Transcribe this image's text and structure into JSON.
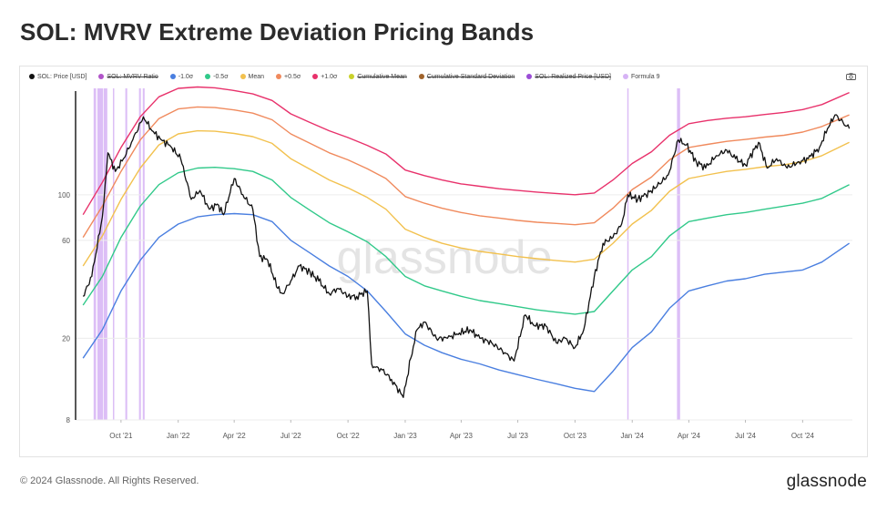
{
  "title": "SOL: MVRV Extreme Deviation Pricing Bands",
  "footer": "© 2024 Glassnode. All Rights Reserved.",
  "brand": "glassnode",
  "watermark": "glassnode",
  "legend": [
    {
      "label": "SOL: Price [USD]",
      "color": "#111111",
      "active": true
    },
    {
      "label": "SOL: MVRV Ratio",
      "color": "#b154c9",
      "active": false
    },
    {
      "label": "-1.0σ",
      "color": "#4a7fe0",
      "active": true
    },
    {
      "label": "-0.5σ",
      "color": "#31c98a",
      "active": true
    },
    {
      "label": "Mean",
      "color": "#f2c14e",
      "active": true
    },
    {
      "label": "+0.5σ",
      "color": "#f08a5d",
      "active": true
    },
    {
      "label": "+1.0σ",
      "color": "#e8316b",
      "active": true
    },
    {
      "label": "Cumulative Mean",
      "color": "#c9d12a",
      "active": false
    },
    {
      "label": "Cumulative Standard Deviation",
      "color": "#a0632b",
      "active": false
    },
    {
      "label": "SOL: Realized Price [USD]",
      "color": "#9b4dd6",
      "active": false
    },
    {
      "label": "Formula 9",
      "color": "#d6b3f5",
      "active": true
    }
  ],
  "chart_data": {
    "type": "line",
    "y_scale": "log",
    "ylim": [
      8,
      330
    ],
    "y_ticks": [
      8,
      20,
      60,
      100
    ],
    "x_ticks": [
      "Oct '21",
      "Jan '22",
      "Apr '22",
      "Jul '22",
      "Oct '22",
      "Jan '23",
      "Apr '23",
      "Jul '23",
      "Oct '23",
      "Jan '24",
      "Apr '24",
      "Jul '24",
      "Oct '24"
    ],
    "x_range": [
      "2021-07-20",
      "2024-12-20"
    ],
    "series": [
      {
        "name": "-1.0σ",
        "color": "#4a7fe0",
        "x": [
          "2021-08-01",
          "2021-09-01",
          "2021-10-01",
          "2021-11-01",
          "2021-12-01",
          "2022-01-01",
          "2022-02-01",
          "2022-03-01",
          "2022-04-01",
          "2022-05-01",
          "2022-06-01",
          "2022-07-01",
          "2022-08-01",
          "2022-09-01",
          "2022-10-01",
          "2022-11-01",
          "2022-12-01",
          "2023-01-01",
          "2023-02-01",
          "2023-03-01",
          "2023-04-01",
          "2023-05-01",
          "2023-06-01",
          "2023-07-01",
          "2023-08-01",
          "2023-09-01",
          "2023-10-01",
          "2023-11-01",
          "2023-12-01",
          "2024-01-01",
          "2024-02-01",
          "2024-03-01",
          "2024-04-01",
          "2024-05-01",
          "2024-06-01",
          "2024-07-01",
          "2024-08-01",
          "2024-09-01",
          "2024-10-01",
          "2024-11-01",
          "2024-12-15"
        ],
        "y": [
          16,
          22,
          34,
          48,
          62,
          72,
          78,
          80,
          81,
          80,
          74,
          60,
          52,
          45,
          40,
          34,
          27,
          21,
          18.5,
          17,
          15.8,
          15,
          14,
          13.3,
          12.6,
          12,
          11.4,
          11,
          13.8,
          18,
          21.5,
          28,
          34,
          36,
          38,
          39,
          41,
          42,
          43,
          47,
          58
        ]
      },
      {
        "name": "-0.5σ",
        "color": "#31c98a",
        "x": [
          "2021-08-01",
          "2021-09-01",
          "2021-10-01",
          "2021-11-01",
          "2021-12-01",
          "2022-01-01",
          "2022-02-01",
          "2022-03-01",
          "2022-04-01",
          "2022-05-01",
          "2022-06-01",
          "2022-07-01",
          "2022-08-01",
          "2022-09-01",
          "2022-10-01",
          "2022-11-01",
          "2022-12-01",
          "2023-01-01",
          "2023-02-01",
          "2023-03-01",
          "2023-04-01",
          "2023-05-01",
          "2023-06-01",
          "2023-07-01",
          "2023-08-01",
          "2023-09-01",
          "2023-10-01",
          "2023-11-01",
          "2023-12-01",
          "2024-01-01",
          "2024-02-01",
          "2024-03-01",
          "2024-04-01",
          "2024-05-01",
          "2024-06-01",
          "2024-07-01",
          "2024-08-01",
          "2024-09-01",
          "2024-10-01",
          "2024-11-01",
          "2024-12-15"
        ],
        "y": [
          29,
          40,
          62,
          88,
          112,
          128,
          135,
          136,
          134,
          130,
          118,
          97,
          84,
          73,
          66,
          59,
          50,
          40,
          36,
          34,
          32,
          30.5,
          29.5,
          28.5,
          27.5,
          26.8,
          26.2,
          27,
          34,
          43,
          50,
          63,
          74,
          77,
          80,
          82,
          85,
          88,
          91,
          96,
          112
        ]
      },
      {
        "name": "Mean",
        "color": "#f2c14e",
        "x": [
          "2021-08-01",
          "2021-09-01",
          "2021-10-01",
          "2021-11-01",
          "2021-12-01",
          "2022-01-01",
          "2022-02-01",
          "2022-03-01",
          "2022-04-01",
          "2022-05-01",
          "2022-06-01",
          "2022-07-01",
          "2022-08-01",
          "2022-09-01",
          "2022-10-01",
          "2022-11-01",
          "2022-12-01",
          "2023-01-01",
          "2023-02-01",
          "2023-03-01",
          "2023-04-01",
          "2023-05-01",
          "2023-06-01",
          "2023-07-01",
          "2023-08-01",
          "2023-09-01",
          "2023-10-01",
          "2023-11-01",
          "2023-12-01",
          "2024-01-01",
          "2024-02-01",
          "2024-03-01",
          "2024-04-01",
          "2024-05-01",
          "2024-06-01",
          "2024-07-01",
          "2024-08-01",
          "2024-09-01",
          "2024-10-01",
          "2024-11-01",
          "2024-12-15"
        ],
        "y": [
          45,
          63,
          95,
          135,
          175,
          198,
          205,
          204,
          199,
          192,
          178,
          150,
          133,
          118,
          108,
          97,
          85,
          68,
          62,
          58,
          55,
          53,
          51.5,
          50,
          48.8,
          47.8,
          47,
          48.5,
          58,
          72,
          84,
          104,
          120,
          125,
          130,
          133,
          137,
          140,
          145,
          155,
          180
        ]
      },
      {
        "name": "+0.5σ",
        "color": "#f08a5d",
        "x": [
          "2021-08-01",
          "2021-09-01",
          "2021-10-01",
          "2021-11-01",
          "2021-12-01",
          "2022-01-01",
          "2022-02-01",
          "2022-03-01",
          "2022-04-01",
          "2022-05-01",
          "2022-06-01",
          "2022-07-01",
          "2022-08-01",
          "2022-09-01",
          "2022-10-01",
          "2022-11-01",
          "2022-12-01",
          "2023-01-01",
          "2023-02-01",
          "2023-03-01",
          "2023-04-01",
          "2023-05-01",
          "2023-06-01",
          "2023-07-01",
          "2023-08-01",
          "2023-09-01",
          "2023-10-01",
          "2023-11-01",
          "2023-12-01",
          "2024-01-01",
          "2024-02-01",
          "2024-03-01",
          "2024-04-01",
          "2024-05-01",
          "2024-06-01",
          "2024-07-01",
          "2024-08-01",
          "2024-09-01",
          "2024-10-01",
          "2024-11-01",
          "2024-12-15"
        ],
        "y": [
          62,
          88,
          130,
          185,
          235,
          262,
          268,
          266,
          259,
          250,
          232,
          198,
          178,
          160,
          148,
          134,
          120,
          98,
          91,
          86,
          82,
          79,
          77,
          75,
          73.5,
          72.5,
          71.5,
          73,
          86,
          106,
          122,
          148,
          170,
          176,
          182,
          186,
          191,
          195,
          202,
          215,
          245
        ]
      },
      {
        "name": "+1.0σ",
        "color": "#e8316b",
        "x": [
          "2021-08-01",
          "2021-09-01",
          "2021-10-01",
          "2021-11-01",
          "2021-12-01",
          "2022-01-01",
          "2022-02-01",
          "2022-03-01",
          "2022-04-01",
          "2022-05-01",
          "2022-06-01",
          "2022-07-01",
          "2022-08-01",
          "2022-09-01",
          "2022-10-01",
          "2022-11-01",
          "2022-12-01",
          "2023-01-01",
          "2023-02-01",
          "2023-03-01",
          "2023-04-01",
          "2023-05-01",
          "2023-06-01",
          "2023-07-01",
          "2023-08-01",
          "2023-09-01",
          "2023-10-01",
          "2023-11-01",
          "2023-12-01",
          "2024-01-01",
          "2024-02-01",
          "2024-03-01",
          "2024-04-01",
          "2024-05-01",
          "2024-06-01",
          "2024-07-01",
          "2024-08-01",
          "2024-09-01",
          "2024-10-01",
          "2024-11-01",
          "2024-12-15"
        ],
        "y": [
          80,
          115,
          170,
          240,
          300,
          330,
          335,
          332,
          322,
          310,
          288,
          248,
          225,
          205,
          190,
          174,
          158,
          132,
          124,
          118,
          113,
          110,
          107,
          105,
          103,
          101.5,
          100,
          102,
          118,
          142,
          162,
          195,
          222,
          230,
          236,
          240,
          246,
          252,
          260,
          275,
          315
        ]
      },
      {
        "name": "SOL: Price [USD]",
        "color": "#111111",
        "x": [
          "2021-08-01",
          "2021-08-15",
          "2021-09-01",
          "2021-09-10",
          "2021-09-22",
          "2021-10-05",
          "2021-10-20",
          "2021-11-06",
          "2021-11-20",
          "2021-12-05",
          "2021-12-20",
          "2022-01-05",
          "2022-01-22",
          "2022-02-05",
          "2022-02-20",
          "2022-03-05",
          "2022-03-15",
          "2022-04-01",
          "2022-04-15",
          "2022-05-01",
          "2022-05-12",
          "2022-05-25",
          "2022-06-10",
          "2022-06-18",
          "2022-07-01",
          "2022-07-15",
          "2022-08-01",
          "2022-08-15",
          "2022-09-01",
          "2022-09-15",
          "2022-10-01",
          "2022-10-15",
          "2022-11-01",
          "2022-11-08",
          "2022-11-12",
          "2022-11-25",
          "2022-12-10",
          "2022-12-29",
          "2023-01-10",
          "2023-01-20",
          "2023-02-01",
          "2023-02-20",
          "2023-03-10",
          "2023-03-25",
          "2023-04-15",
          "2023-05-01",
          "2023-05-20",
          "2023-06-10",
          "2023-06-25",
          "2023-07-13",
          "2023-07-28",
          "2023-08-15",
          "2023-09-01",
          "2023-09-15",
          "2023-10-01",
          "2023-10-15",
          "2023-11-01",
          "2023-11-15",
          "2023-12-01",
          "2023-12-15",
          "2023-12-25",
          "2024-01-10",
          "2024-01-23",
          "2024-02-10",
          "2024-02-28",
          "2024-03-15",
          "2024-03-28",
          "2024-04-13",
          "2024-04-28",
          "2024-05-15",
          "2024-06-01",
          "2024-06-15",
          "2024-07-01",
          "2024-07-22",
          "2024-08-05",
          "2024-08-20",
          "2024-09-06",
          "2024-09-25",
          "2024-10-10",
          "2024-10-28",
          "2024-11-10",
          "2024-11-22",
          "2024-12-05",
          "2024-12-15"
        ],
        "y": [
          32,
          40,
          78,
          160,
          130,
          150,
          185,
          240,
          205,
          185,
          172,
          150,
          95,
          105,
          85,
          90,
          80,
          120,
          100,
          85,
          50,
          48,
          35,
          33,
          38,
          45,
          42,
          38,
          33,
          35,
          32,
          32,
          34,
          15,
          14.5,
          14,
          12.6,
          10.3,
          16,
          22,
          24,
          20,
          20,
          21,
          22,
          20,
          19,
          17,
          15.5,
          26,
          23,
          23,
          19,
          20,
          18,
          22,
          40,
          58,
          62,
          72,
          100,
          95,
          100,
          110,
          125,
          185,
          175,
          145,
          135,
          155,
          165,
          150,
          140,
          180,
          135,
          150,
          135,
          145,
          150,
          170,
          210,
          245,
          225,
          210
        ]
      }
    ],
    "highlight_ranges": [
      [
        "2021-08-18",
        "2021-08-22"
      ],
      [
        "2021-08-24",
        "2021-09-02"
      ],
      [
        "2021-09-03",
        "2021-09-09"
      ],
      [
        "2021-09-18",
        "2021-09-20"
      ],
      [
        "2021-10-08",
        "2021-10-11"
      ],
      [
        "2021-10-30",
        "2021-11-02"
      ],
      [
        "2021-11-05",
        "2021-11-08"
      ],
      [
        "2023-12-24",
        "2023-12-26"
      ],
      [
        "2024-03-13",
        "2024-03-18"
      ]
    ],
    "highlight_series": "Formula 9",
    "highlight_color": "#d6b3f5"
  }
}
